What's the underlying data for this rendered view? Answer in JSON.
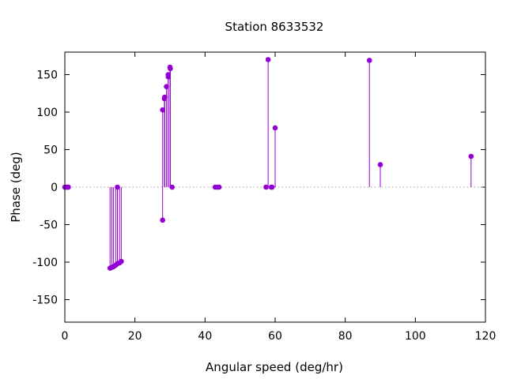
{
  "chart_data": {
    "type": "scatter",
    "style": "impulse (vertical stems from zero with point markers)",
    "title": "Station 8633532",
    "xlabel": "Angular speed (deg/hr)",
    "ylabel": "Phase (deg)",
    "xlim": [
      0,
      120
    ],
    "ylim": [
      -180,
      180
    ],
    "x_ticks": [
      0,
      20,
      40,
      60,
      80,
      100,
      120
    ],
    "y_ticks": [
      -150,
      -100,
      -50,
      0,
      50,
      100,
      150
    ],
    "x_tick_labels": [
      "0",
      "20",
      "40",
      "60",
      "80",
      "100",
      "120"
    ],
    "y_tick_labels": [
      "-150",
      "-100",
      "-50",
      "0",
      "50",
      "100",
      "150"
    ],
    "zero_line": "dotted",
    "grid": false,
    "legend": "none",
    "color": "#9400d3",
    "series": [
      {
        "points": [
          {
            "x": 0.0,
            "y": 0
          },
          {
            "x": 0.5,
            "y": 0
          },
          {
            "x": 0.8,
            "y": 0
          },
          {
            "x": 1.0,
            "y": 0
          },
          {
            "x": 12.9,
            "y": -108
          },
          {
            "x": 13.4,
            "y": -107
          },
          {
            "x": 13.9,
            "y": -106
          },
          {
            "x": 14.5,
            "y": -104
          },
          {
            "x": 15.0,
            "y": 0
          },
          {
            "x": 15.0,
            "y": -102
          },
          {
            "x": 15.6,
            "y": -101
          },
          {
            "x": 16.1,
            "y": -99
          },
          {
            "x": 27.9,
            "y": -44
          },
          {
            "x": 27.9,
            "y": 103
          },
          {
            "x": 28.4,
            "y": 118
          },
          {
            "x": 28.5,
            "y": 120
          },
          {
            "x": 29.0,
            "y": 134
          },
          {
            "x": 29.5,
            "y": 147
          },
          {
            "x": 29.5,
            "y": 150
          },
          {
            "x": 30.0,
            "y": 160
          },
          {
            "x": 30.1,
            "y": 158
          },
          {
            "x": 30.6,
            "y": 0
          },
          {
            "x": 42.9,
            "y": 0
          },
          {
            "x": 43.5,
            "y": 0
          },
          {
            "x": 44.0,
            "y": 0
          },
          {
            "x": 57.4,
            "y": 0
          },
          {
            "x": 58.0,
            "y": 170
          },
          {
            "x": 58.9,
            "y": 0
          },
          {
            "x": 59.1,
            "y": 0
          },
          {
            "x": 60.0,
            "y": 79
          },
          {
            "x": 86.9,
            "y": 169
          },
          {
            "x": 90.0,
            "y": 30
          },
          {
            "x": 115.9,
            "y": 41
          }
        ]
      }
    ]
  }
}
